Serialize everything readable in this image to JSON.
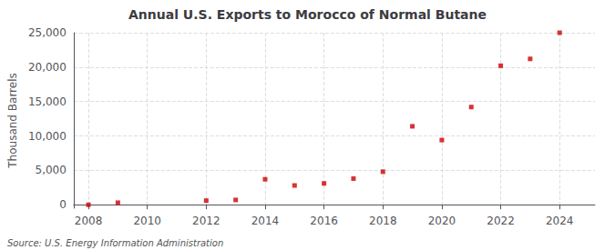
{
  "chart_data": {
    "type": "scatter",
    "title": "Annual U.S. Exports to Morocco of Normal Butane",
    "ylabel": "Thousand Barrels",
    "annotations": [
      "Source: U.S. Energy Information Administration"
    ],
    "x": [
      2008,
      2009,
      2012,
      2013,
      2014,
      2015,
      2016,
      2017,
      2018,
      2019,
      2020,
      2021,
      2022,
      2023,
      2024
    ],
    "values": [
      0,
      300,
      600,
      700,
      3700,
      2800,
      3100,
      3800,
      4800,
      11400,
      9400,
      14200,
      20200,
      21200,
      25000
    ],
    "color": "#cc0000",
    "marker": "square",
    "xlim": [
      2007.5,
      2025.2
    ],
    "ylim": [
      -500,
      25000
    ],
    "xticks": [
      2008,
      2010,
      2012,
      2014,
      2016,
      2018,
      2020,
      2022,
      2024
    ],
    "yticks": [
      0,
      {
        "value": 5000,
        "label": "5,000"
      },
      {
        "value": 10000,
        "label": "10,000"
      },
      {
        "value": 15000,
        "label": "15,000"
      },
      {
        "value": 20000,
        "label": "20,000"
      },
      {
        "value": 25000,
        "label": "25,000"
      }
    ],
    "grid": true
  }
}
